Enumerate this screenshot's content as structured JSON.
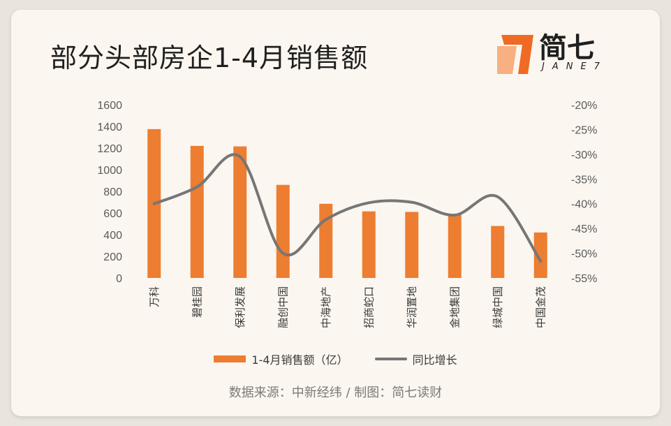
{
  "title": "部分头部房企1-4月销售额",
  "logo": {
    "text": "简七",
    "subtext": "JANE7",
    "icon": "jane7-logo-mark",
    "color": "#ef6a23"
  },
  "source": "数据来源：中新经纬 / 制图：简七读财",
  "colors": {
    "bar": "#ed7d31",
    "line": "#767676"
  },
  "chart_data": {
    "type": "bar",
    "categories": [
      "万科",
      "碧桂园",
      "保利发展",
      "融创中国",
      "中海地产",
      "招商蛇口",
      "华润置地",
      "金地集团",
      "绿城中国",
      "中国金茂"
    ],
    "series": [
      {
        "name": "1-4月销售额（亿）",
        "type": "bar",
        "axis": "left",
        "values": [
          1375,
          1220,
          1215,
          860,
          685,
          615,
          610,
          590,
          480,
          420
        ]
      },
      {
        "name": "同比增长",
        "type": "line",
        "axis": "right",
        "smooth": true,
        "values": [
          -40.0,
          -36.6,
          -30.5,
          -50.0,
          -43.2,
          -39.8,
          -39.7,
          -42.3,
          -38.6,
          -51.6
        ]
      }
    ],
    "y_left": {
      "min": 0,
      "max": 1600,
      "ticks": [
        0,
        200,
        400,
        600,
        800,
        1000,
        1200,
        1400,
        1600
      ]
    },
    "y_right": {
      "min": -55,
      "max": -20,
      "ticks": [
        -55,
        -50,
        -45,
        -40,
        -35,
        -30,
        -25,
        -20
      ],
      "tick_labels": [
        "-55%",
        "-50%",
        "-45%",
        "-40%",
        "-35%",
        "-30%",
        "-25%",
        "-20%"
      ]
    },
    "grid": false,
    "legend_position": "bottom"
  }
}
